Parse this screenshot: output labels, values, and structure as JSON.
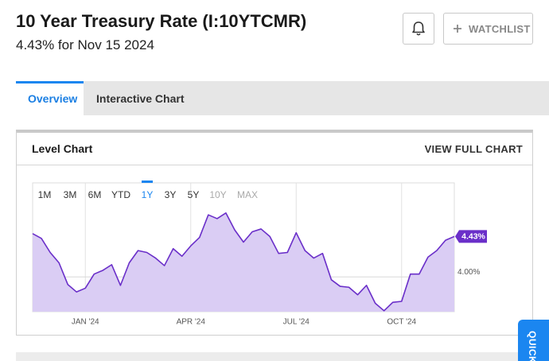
{
  "header": {
    "title": "10 Year Treasury Rate (I:10YTCMR)",
    "subtitle": "4.43% for Nov 15 2024"
  },
  "buttons": {
    "watchlist": "WATCHLIST"
  },
  "tabs": [
    {
      "label": "Overview",
      "active": true
    },
    {
      "label": "Interactive Chart",
      "active": false
    }
  ],
  "card": {
    "title": "Level Chart",
    "link": "VIEW FULL CHART"
  },
  "range_buttons": [
    {
      "label": "1M",
      "active": false,
      "disabled": false
    },
    {
      "label": "3M",
      "active": false,
      "disabled": false
    },
    {
      "label": "6M",
      "active": false,
      "disabled": false
    },
    {
      "label": "YTD",
      "active": false,
      "disabled": false
    },
    {
      "label": "1Y",
      "active": true,
      "disabled": false
    },
    {
      "label": "3Y",
      "active": false,
      "disabled": false
    },
    {
      "label": "5Y",
      "active": false,
      "disabled": false
    },
    {
      "label": "10Y",
      "active": false,
      "disabled": true
    },
    {
      "label": "MAX",
      "active": false,
      "disabled": true
    }
  ],
  "chart_data": {
    "type": "line",
    "categories": [
      null,
      null,
      null,
      null,
      null,
      null,
      "JAN '24",
      null,
      null,
      null,
      null,
      null,
      null,
      null,
      null,
      null,
      null,
      null,
      "APR '24",
      null,
      null,
      null,
      null,
      null,
      null,
      null,
      null,
      null,
      null,
      null,
      "JUL '24",
      null,
      null,
      null,
      null,
      null,
      null,
      null,
      null,
      null,
      null,
      null,
      "OCT '24",
      null,
      null,
      null,
      null,
      null,
      null
    ],
    "values": [
      4.46,
      4.41,
      4.26,
      4.15,
      3.92,
      3.84,
      3.88,
      4.03,
      4.07,
      4.13,
      3.91,
      4.15,
      4.28,
      4.26,
      4.2,
      4.12,
      4.3,
      4.22,
      4.33,
      4.42,
      4.66,
      4.62,
      4.68,
      4.5,
      4.37,
      4.48,
      4.51,
      4.43,
      4.25,
      4.26,
      4.47,
      4.28,
      4.2,
      4.25,
      3.97,
      3.9,
      3.89,
      3.81,
      3.91,
      3.72,
      3.64,
      3.73,
      3.74,
      4.03,
      4.03,
      4.21,
      4.28,
      4.39,
      4.43
    ],
    "value_labels": [
      null,
      null,
      null,
      null,
      null,
      null,
      null,
      null,
      null,
      null,
      null,
      null,
      null,
      null,
      null,
      null,
      null,
      null,
      null,
      null,
      null,
      null,
      null,
      null,
      null,
      null,
      null,
      null,
      null,
      null,
      null,
      null,
      null,
      null,
      null,
      null,
      null,
      null,
      null,
      null,
      null,
      null,
      null,
      null,
      null,
      null,
      null,
      null,
      "4.43%"
    ],
    "color": "#6a2fc9",
    "fill_color": "#dacdf4",
    "ylim": [
      3.63,
      5.0
    ],
    "yticks": [
      {
        "value": 4,
        "label": "4.00%"
      }
    ],
    "grid": true
  },
  "side_tab": "QUICK"
}
